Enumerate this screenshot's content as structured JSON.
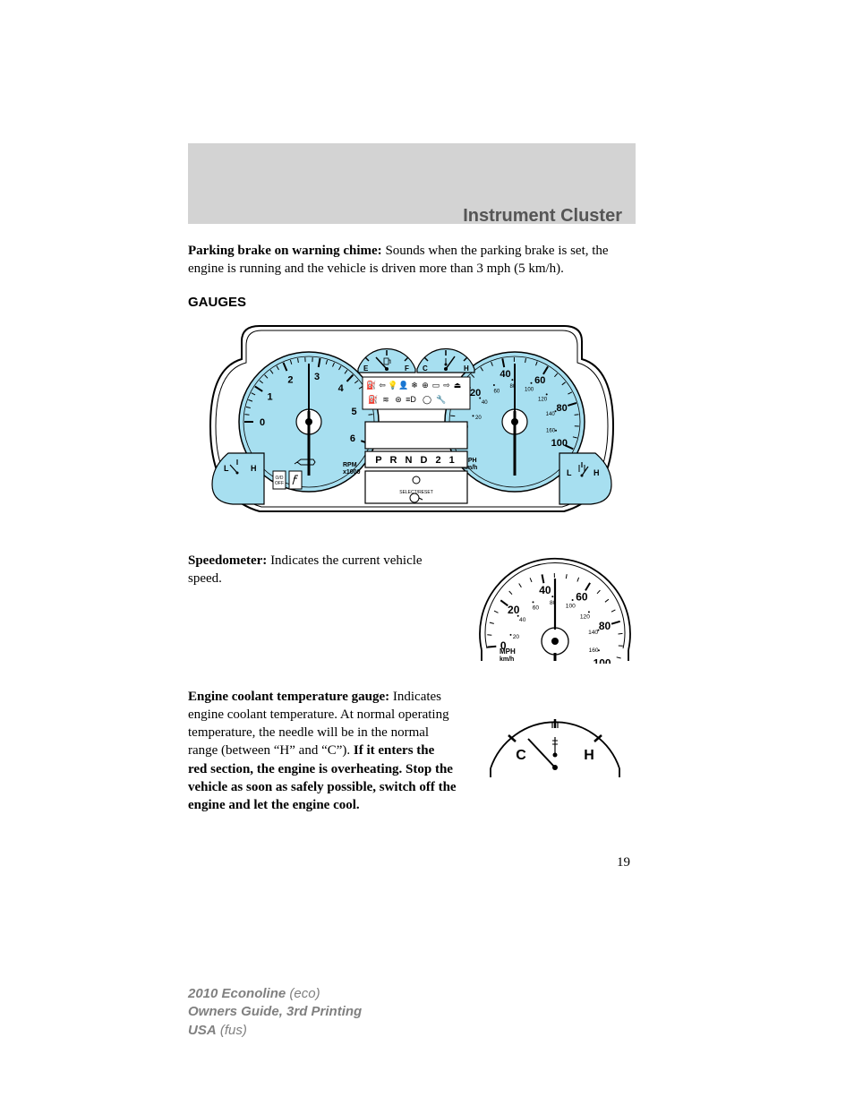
{
  "title": "Instrument Cluster",
  "parking": {
    "bold": "Parking brake on warning chime:",
    "rest": " Sounds when the parking brake is set, the engine is running and the vehicle is driven more than 3 mph (5 km/h)."
  },
  "gauges_head": "GAUGES",
  "cluster": {
    "background": "#ffffff",
    "outline": "#000000",
    "gauge_fill": "#a7dff0",
    "stroke_width": 1.5,
    "tach": {
      "labels": [
        "0",
        "1",
        "2",
        "3",
        "4",
        "5",
        "6"
      ],
      "unit1": "RPM",
      "unit2": "x1000"
    },
    "speedo": {
      "major": [
        "0",
        "20",
        "40",
        "60",
        "80",
        "100"
      ],
      "minor_pairs": [
        [
          "20",
          "0"
        ],
        [
          "40",
          "80"
        ],
        [
          "60",
          "100"
        ],
        [
          "80",
          "120"
        ],
        [
          "100",
          "140"
        ],
        [
          "",
          "160"
        ]
      ],
      "unit1": "MPH",
      "unit2": "km/h"
    },
    "fuel": {
      "left": "E",
      "right": "F"
    },
    "temp": {
      "left": "C",
      "right": "H"
    },
    "prndl": "P   R N D 2 1",
    "corner_left": {
      "l": "L",
      "h": "H",
      "od": "O/D",
      "off": "OFF"
    },
    "corner_right": {
      "l": "L",
      "h": "H",
      "select": "SELECT/RESET"
    },
    "needle_color": "#000000"
  },
  "speedo_section": {
    "bold": "Speedometer:",
    "rest": " Indicates the current vehicle speed."
  },
  "coolant_section": {
    "bold": "Engine coolant temperature gauge:",
    "mid": " Indicates engine coolant temperature. At normal operating temperature, the needle will be in the normal range (between “H” and “C”). ",
    "bold2": "If it enters the red section, the engine is overheating. Stop the vehicle as soon as safely possible, switch off the engine and let the engine cool."
  },
  "speedo_detail": {
    "major": [
      "0",
      "20",
      "40",
      "60",
      "80",
      "100"
    ],
    "kmh": [
      "20",
      "40",
      "60",
      "80",
      "100",
      "120",
      "140",
      "160"
    ],
    "unit1": "MPH",
    "unit2": "km/h"
  },
  "temp_detail": {
    "left": "C",
    "right": "H"
  },
  "page_number": "19",
  "footer": {
    "l1a": "2010 Econoline",
    "l1b": " (eco)",
    "l2": "Owners Guide, 3rd Printing",
    "l3a": "USA",
    "l3b": " (fus)"
  }
}
